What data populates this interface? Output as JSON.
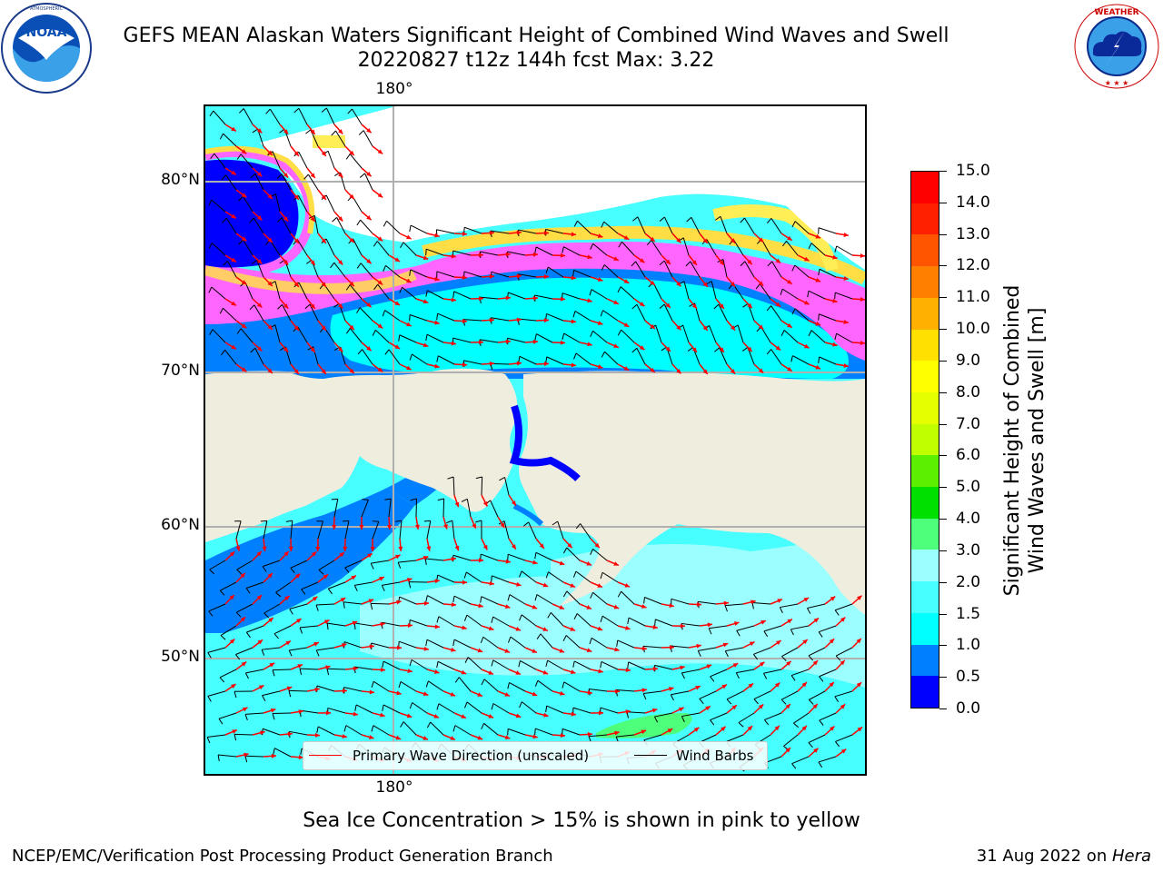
{
  "header": {
    "title_line1": "GEFS MEAN Alaskan Waters Significant Height of Combined Wind Waves and Swell",
    "title_line2": "20220827 t12z 144h fcst   Max: 3.22"
  },
  "logos": {
    "left": {
      "name": "noaa-logo",
      "text": "NOAA",
      "ring_text": "NATIONAL OCEANIC AND ATMOSPHERIC ADMINISTRATION · U.S. DEPARTMENT OF COMMERCE"
    },
    "right": {
      "name": "nws-logo",
      "ring_text": "NATIONAL WEATHER SERVICE"
    }
  },
  "map": {
    "lon_labels": {
      "top": "180°",
      "bottom": "180°"
    },
    "lat_labels": [
      "80°N",
      "70°N",
      "60°N",
      "50°N"
    ],
    "legend": {
      "wave_label": "Primary Wave Direction (unscaled)",
      "wave_color": "#ff0000",
      "barb_label": "Wind Barbs",
      "barb_color": "#000000"
    },
    "land_color": "#efedde",
    "grid_color": "#b0b0b0"
  },
  "colorbar": {
    "title_line1": "Significant Height of Combined",
    "title_line2": "Wind Waves and Swell [m]",
    "tick_labels": [
      "0.0",
      "0.5",
      "1.0",
      "1.5",
      "2.0",
      "3.0",
      "4.0",
      "5.0",
      "6.0",
      "7.0",
      "8.0",
      "9.0",
      "10.0",
      "11.0",
      "12.0",
      "13.0",
      "14.0",
      "15.0"
    ],
    "segment_colors": [
      "#0000ff",
      "#0080ff",
      "#00ffff",
      "#48ffff",
      "#9bffff",
      "#4dff7a",
      "#00e000",
      "#5cf000",
      "#c0ff00",
      "#e6ff00",
      "#ffff00",
      "#ffe000",
      "#ffb000",
      "#ff8000",
      "#ff5500",
      "#ff2000",
      "#ff0000"
    ]
  },
  "footer": {
    "subcaption": "Sea Ice Concentration > 15% is shown in pink to yellow",
    "left": "NCEP/EMC/Verification Post Processing Product Generation Branch",
    "right_date": "31 Aug 2022 on ",
    "right_host": "Hera"
  }
}
